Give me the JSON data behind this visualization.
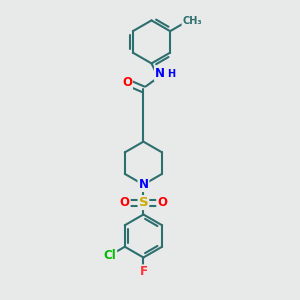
{
  "background_color": "#e8eaea",
  "bond_color": "#2d6e6e",
  "bond_width": 1.5,
  "atom_colors": {
    "O": "#ff0000",
    "N": "#0000ff",
    "S": "#ccaa00",
    "Cl": "#00bb00",
    "F": "#ff3333",
    "C": "#2d6e6e",
    "H": "#0000ff"
  },
  "font_size": 8.5,
  "fig_width": 3.0,
  "fig_height": 3.0
}
